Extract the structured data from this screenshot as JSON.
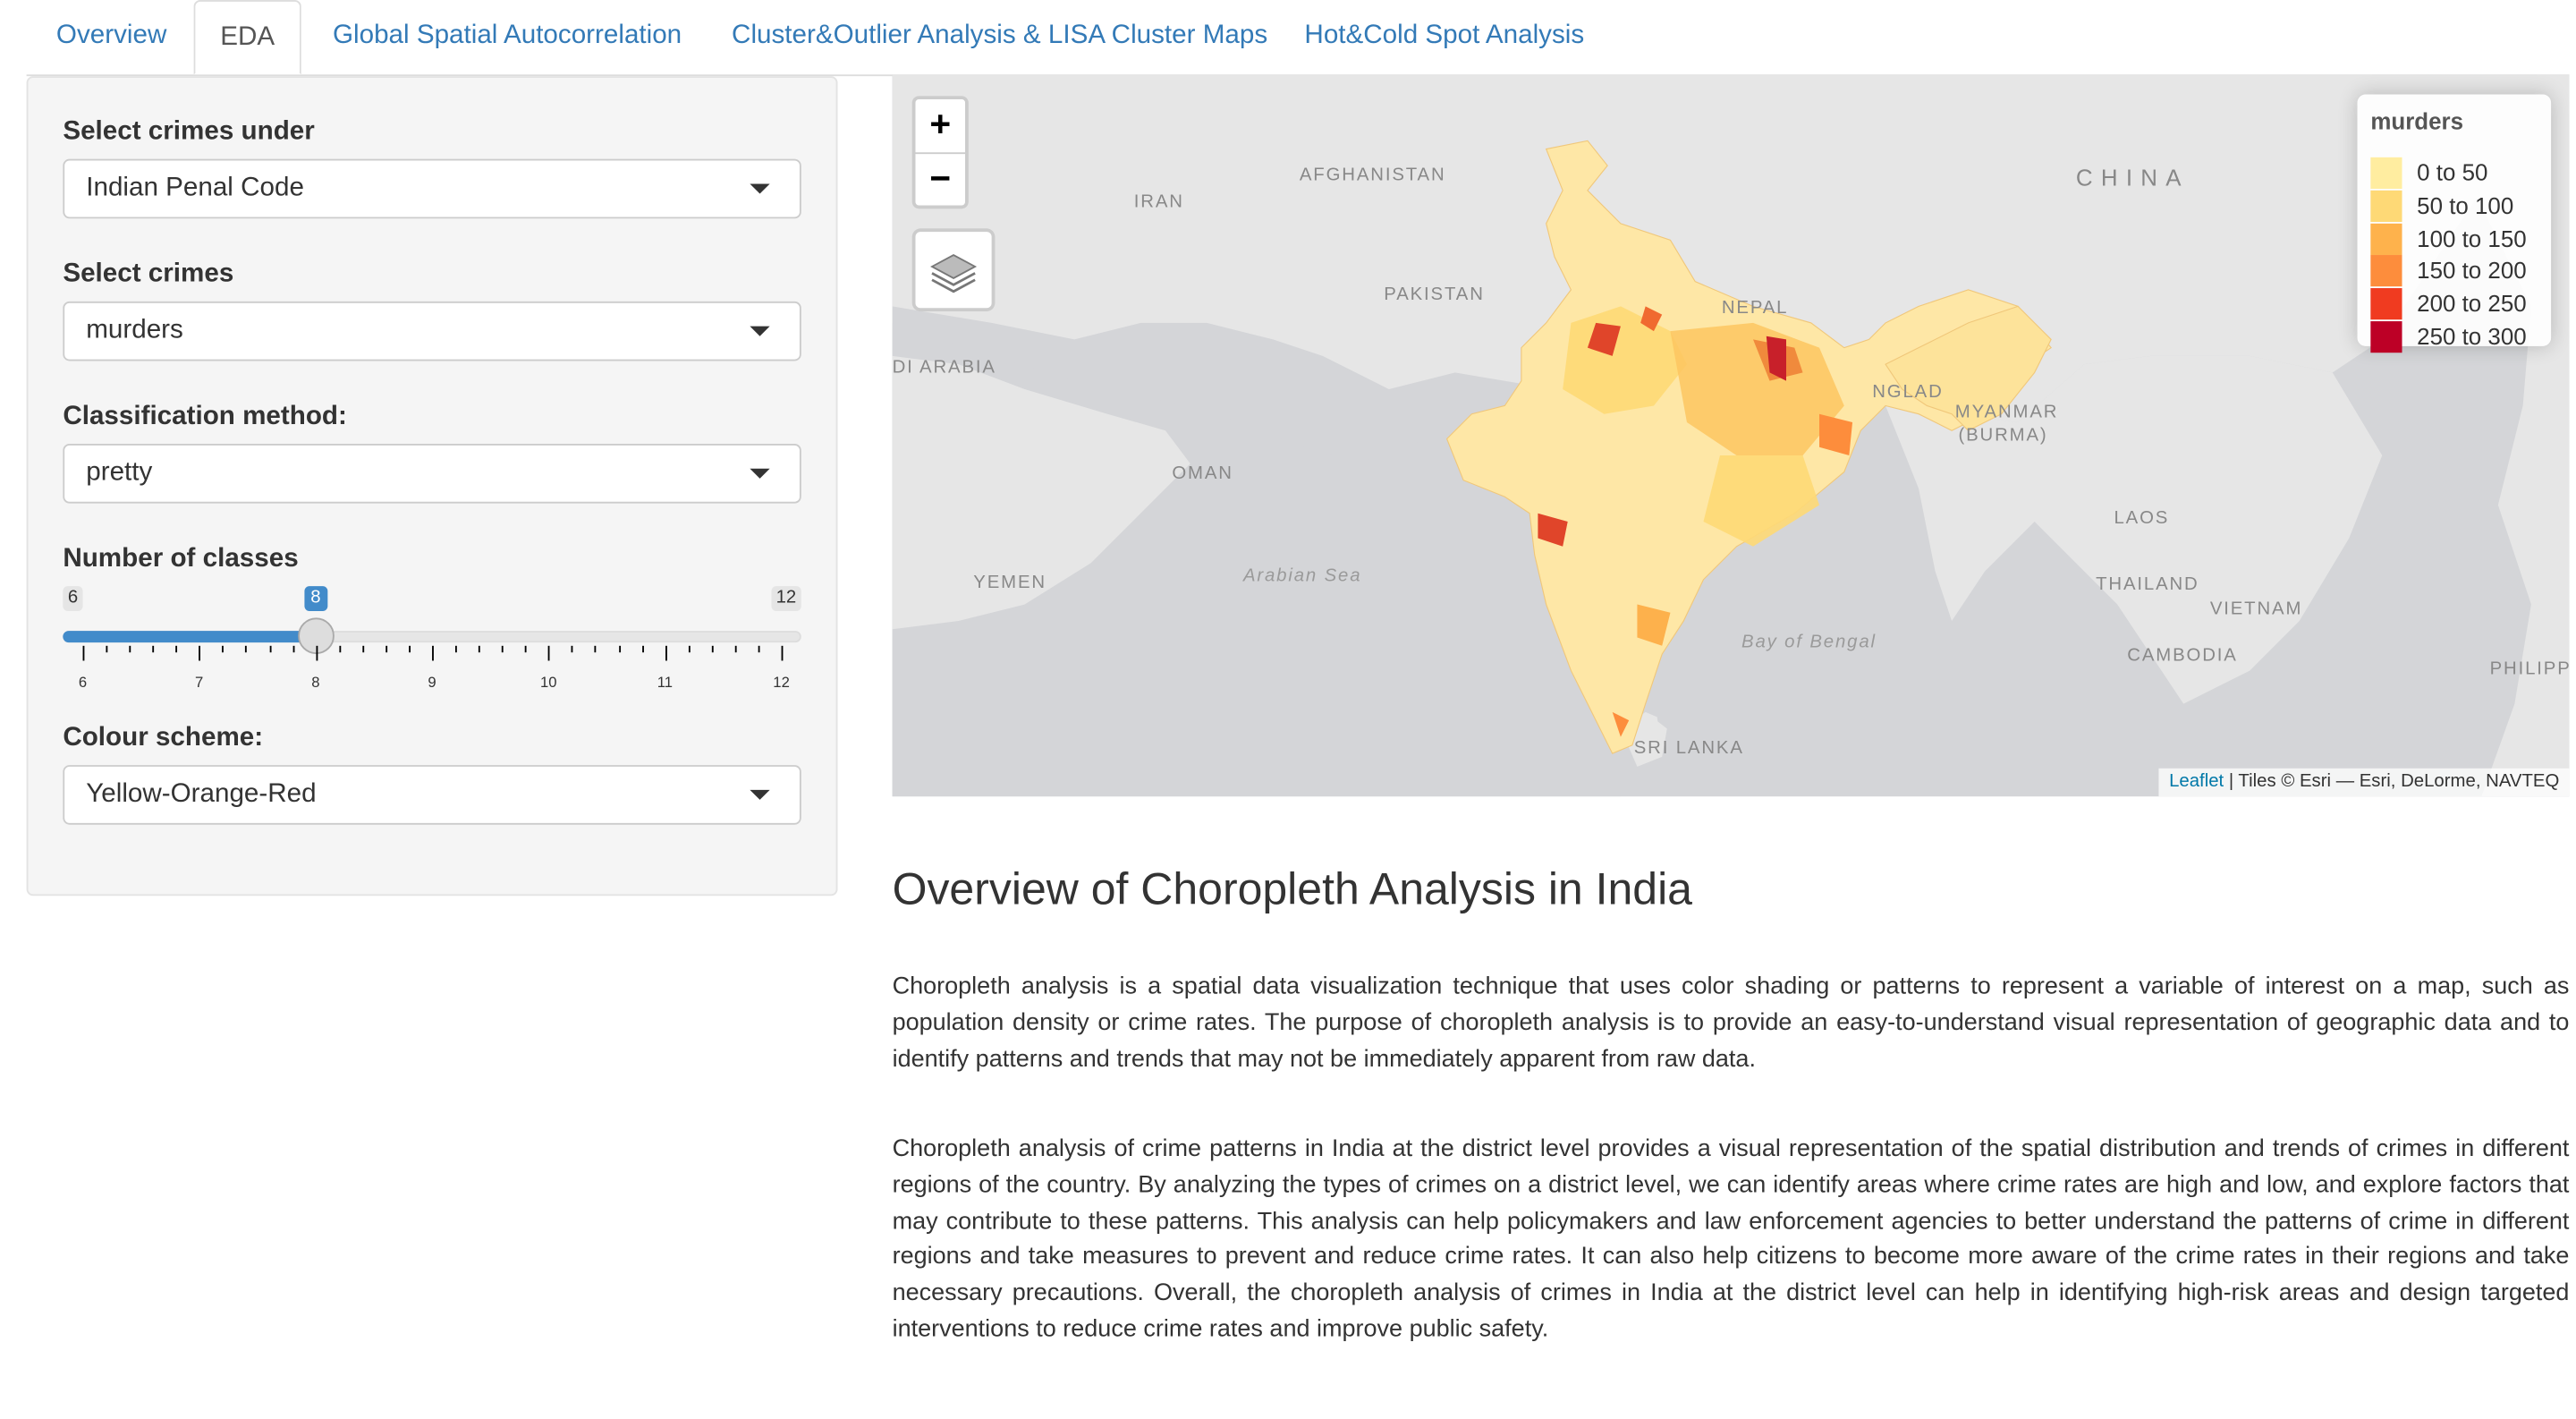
{
  "tabs": [
    {
      "label": "Overview",
      "active": false
    },
    {
      "label": "EDA",
      "active": true
    },
    {
      "label": "Global Spatial Autocorrelation",
      "active": false
    },
    {
      "label": "Cluster&Outlier Analysis & LISA Cluster Maps",
      "active": false
    },
    {
      "label": "Hot&Cold Spot Analysis",
      "active": false
    }
  ],
  "sidebar": {
    "crime_group": {
      "label": "Select crimes under",
      "value": "Indian Penal Code"
    },
    "crime": {
      "label": "Select crimes",
      "value": "murders"
    },
    "classification": {
      "label": "Classification method:",
      "value": "pretty"
    },
    "classes": {
      "label": "Number of classes",
      "min": 6,
      "max": 12,
      "value": 8,
      "min_label": "6",
      "max_label": "12",
      "value_label": "8",
      "ticks": [
        "6",
        "7",
        "8",
        "9",
        "10",
        "11",
        "12"
      ]
    },
    "colour": {
      "label": "Colour scheme:",
      "value": "Yellow-Orange-Red"
    }
  },
  "map": {
    "zoom_in": "+",
    "zoom_out": "−",
    "legend": {
      "title": "murders",
      "items": [
        {
          "label": "0 to 50",
          "color": "#ffeda0"
        },
        {
          "label": "50 to 100",
          "color": "#fed976"
        },
        {
          "label": "100 to 150",
          "color": "#feb24c"
        },
        {
          "label": "150 to 200",
          "color": "#fd8d3c"
        },
        {
          "label": "200 to 250",
          "color": "#f03b20"
        },
        {
          "label": "250 to 300",
          "color": "#bd0026"
        }
      ]
    },
    "place_labels": {
      "afghanistan": "AFGHANISTAN",
      "iran": "IRAN",
      "china": "CHINA",
      "pakistan": "PAKISTAN",
      "nepal": "NEPAL",
      "saudi": "DI ARABIA",
      "bangladesh": "NGLAD",
      "myanmar": "MYANMAR",
      "burma": "(BURMA)",
      "oman": "OMAN",
      "laos": "LAOS",
      "yemen": "YEMEN",
      "arabian_sea": "Arabian Sea",
      "thailand": "THAILAND",
      "vietnam": "VIETNAM",
      "bay_of_bengal": "Bay of Bengal",
      "cambodia": "CAMBODIA",
      "philippines": "PHILIPP",
      "sri_lanka": "SRI LANKA"
    },
    "attribution": {
      "link": "Leaflet",
      "text": " | Tiles © Esri — Esri, DeLorme, NAVTEQ"
    }
  },
  "content": {
    "heading": "Overview of Choropleth Analysis in India",
    "para1": "Choropleth analysis is a spatial data visualization technique that uses color shading or patterns to represent a variable of interest on a map, such as population density or crime rates. The purpose of choropleth analysis is to provide an easy-to-understand visual representation of geographic data and to identify patterns and trends that may not be immediately apparent from raw data.",
    "para2": "Choropleth analysis of crime patterns in India at the district level provides a visual representation of the spatial distribution and trends of crimes in different regions of the country. By analyzing the types of crimes on a district level, we can identify areas where crime rates are high and low, and explore factors that may contribute to these patterns. This analysis can help policymakers and law enforcement agencies to better understand the patterns of crime in different regions and take measures to prevent and reduce crime rates. It can also help citizens to become more aware of the crime rates in their regions and take necessary precautions. Overall, the choropleth analysis of crimes in India at the district level can help in identifying high-risk areas and design targeted interventions to reduce crime rates and improve public safety."
  }
}
